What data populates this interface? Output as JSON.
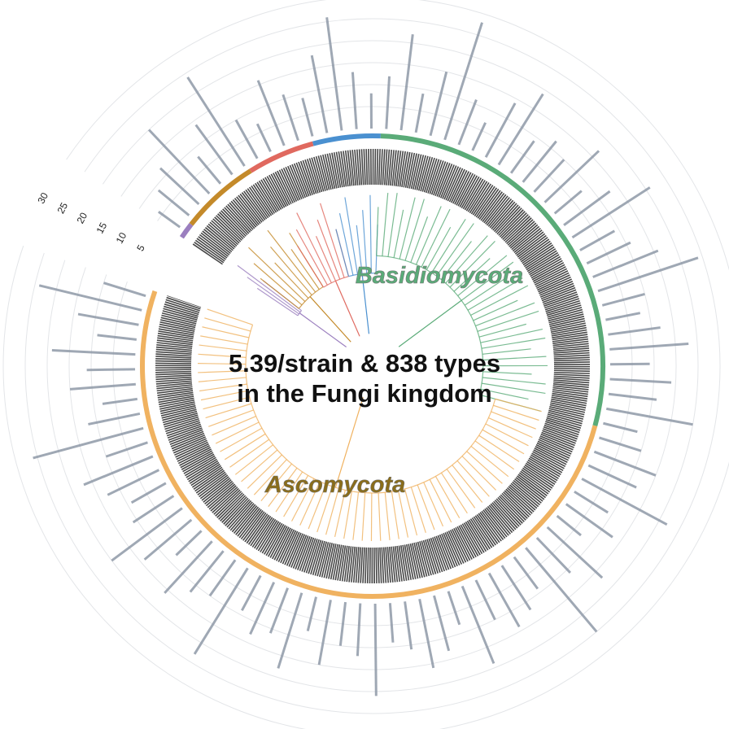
{
  "chart_data": {
    "type": "circular-bar",
    "title_lines": [
      "5.39/strain & 838 types",
      "in the Fungi kingdom"
    ],
    "clades": [
      {
        "name": "Basidiomycota",
        "color": "#5aab78"
      },
      {
        "name": "Ascomycota",
        "color": "#f0b260"
      }
    ],
    "bar_color": "#8f99a8",
    "rlim": [
      0,
      35
    ],
    "rticks": [
      5,
      10,
      15,
      20,
      25,
      30
    ],
    "grid": true,
    "values": [
      6,
      9,
      12,
      20,
      8,
      14,
      24,
      10,
      7,
      16,
      11,
      9,
      18,
      26,
      13,
      8,
      12,
      22,
      9,
      15,
      28,
      11,
      7,
      14,
      19,
      9,
      12,
      10,
      17,
      8,
      13,
      21,
      9,
      11,
      16,
      24,
      10,
      8,
      12,
      18,
      9,
      14,
      11,
      20,
      8,
      10,
      15,
      12,
      22,
      9,
      13,
      7,
      17,
      11,
      25,
      9,
      12,
      14,
      10,
      19,
      8,
      13,
      16,
      11,
      9,
      21,
      12,
      10,
      15,
      8,
      18,
      11,
      13,
      9,
      23,
      10,
      12,
      16,
      8,
      14,
      20,
      11,
      9,
      13,
      17,
      10,
      26,
      12,
      8,
      15,
      11,
      19,
      9,
      14,
      24,
      10
    ]
  }
}
